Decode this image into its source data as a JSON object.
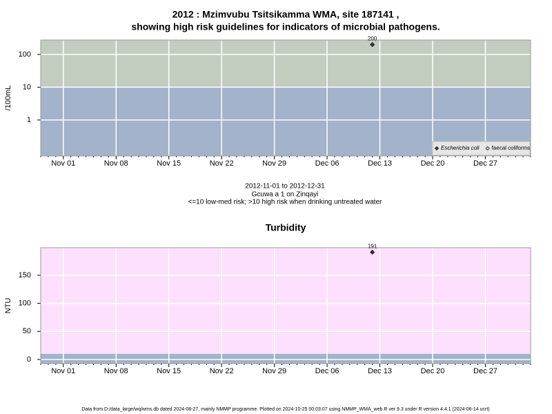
{
  "title": "2012 : Mzimvubu Tsitsikamma WMA, site 187141 ,",
  "subtitle": "showing high risk guidelines for indicators of microbial pathogens.",
  "notes": [
    "2012-11-01 to 2012-12-31",
    "Gcuwa a 1 on Zinqayi",
    "<=10 low-med risk; >10 high risk when drinking untreated water"
  ],
  "footer": "Data from D:/data_large/wq/wms.db dated 2024-08-27, mainly NMMP programme. Plotted on 2024-10-25 00:03:07 using NMMP_WMA_web.R ver 9.3 under R version 4.4.1 (2024-06-14 ucrt)",
  "chart_data": [
    {
      "type": "scatter",
      "y_label": "/100mL",
      "log_y": true,
      "grid": true,
      "legend": "bottom-right",
      "threshold": 10,
      "below_color": "#a2b3cb",
      "above_color": "#c2cdc0",
      "x": [
        "2012-12-12"
      ],
      "xlim": [
        "2012-10-29",
        "2013-01-02"
      ],
      "xticks": [
        {
          "value": "2012-11-01",
          "label": "Nov 01"
        },
        {
          "value": "2012-11-08",
          "label": "Nov 08"
        },
        {
          "value": "2012-11-15",
          "label": "Nov 15"
        },
        {
          "value": "2012-11-22",
          "label": "Nov 22"
        },
        {
          "value": "2012-11-29",
          "label": "Nov 29"
        },
        {
          "value": "2012-12-06",
          "label": "Dec 06"
        },
        {
          "value": "2012-12-13",
          "label": "Dec 13"
        },
        {
          "value": "2012-12-20",
          "label": "Dec 20"
        },
        {
          "value": "2012-12-27",
          "label": "Dec 27"
        }
      ],
      "ylim": [
        0.08,
        275
      ],
      "yticks": [
        1,
        10,
        100
      ],
      "series": [
        {
          "name": "Escherichia coli",
          "color": "#333333",
          "values": [
            200
          ]
        },
        {
          "name": "faecal coliforms",
          "color": "#ffffff",
          "values": [
            null
          ]
        }
      ]
    },
    {
      "type": "scatter",
      "title": "Turbidity",
      "y_label": "NTU",
      "log_y": false,
      "grid": true,
      "threshold": 10,
      "below_color": "#a2b3cb",
      "above_color": "#fde0fd",
      "x": [
        "2012-12-12"
      ],
      "xlim": [
        "2012-10-29",
        "2013-01-02"
      ],
      "xticks": [
        {
          "value": "2012-11-01",
          "label": "Nov 01"
        },
        {
          "value": "2012-11-08",
          "label": "Nov 08"
        },
        {
          "value": "2012-11-15",
          "label": "Nov 15"
        },
        {
          "value": "2012-11-22",
          "label": "Nov 22"
        },
        {
          "value": "2012-11-29",
          "label": "Nov 29"
        },
        {
          "value": "2012-12-06",
          "label": "Dec 06"
        },
        {
          "value": "2012-12-13",
          "label": "Dec 13"
        },
        {
          "value": "2012-12-20",
          "label": "Dec 20"
        },
        {
          "value": "2012-12-27",
          "label": "Dec 27"
        }
      ],
      "ylim": [
        -7.4,
        199
      ],
      "yticks": [
        0,
        50,
        100,
        150
      ],
      "series": [
        {
          "name": "Turbidity",
          "color": "#333333",
          "values": [
            191
          ]
        }
      ]
    }
  ]
}
